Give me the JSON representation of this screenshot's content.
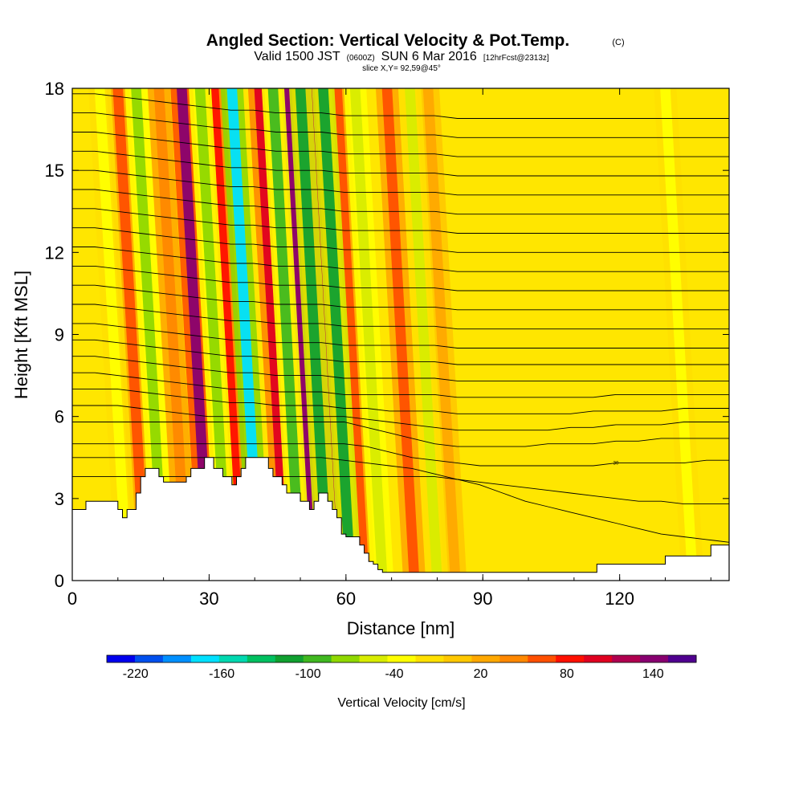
{
  "chart_data": {
    "type": "heatmap",
    "title": "Angled Section: Vertical Velocity & Pot.Temp.",
    "title_mark": "(C)",
    "subtitle": {
      "valid": "Valid 1500 JST",
      "zulu": "(0600Z)",
      "date": "SUN 6 Mar 2016",
      "forecast": "[12hrFcst@2313z]"
    },
    "slice_label": "slice X,Y= 92,59@45°",
    "xlabel": "Distance [nm]",
    "ylabel": "Height [Kft MSL]",
    "xlim": [
      0,
      144
    ],
    "ylim": [
      0,
      18
    ],
    "x_ticks": [
      0,
      30,
      60,
      90,
      120
    ],
    "y_ticks": [
      0,
      3,
      6,
      9,
      12,
      15,
      18
    ],
    "x_tick_labels": [
      "0",
      "30",
      "60",
      "90",
      "120"
    ],
    "y_tick_labels": [
      "0",
      "3",
      "6",
      "9",
      "12",
      "15",
      "18"
    ],
    "colorbar": {
      "label": "Vertical Velocity [cm/s]",
      "tick_labels": [
        "-220",
        "-160",
        "-100",
        "-40",
        "20",
        "80",
        "140"
      ],
      "min": -240,
      "max": 170,
      "colors": [
        "#0000ee",
        "#0050ee",
        "#0090ff",
        "#00e0ff",
        "#00d8b0",
        "#00c060",
        "#10a030",
        "#40b820",
        "#90d800",
        "#d8ec00",
        "#ffff00",
        "#ffe000",
        "#ffc800",
        "#ffa800",
        "#ff8800",
        "#ff5000",
        "#ff1000",
        "#e00020",
        "#b00050",
        "#880070",
        "#500090"
      ]
    },
    "terrain": {
      "x": [
        0,
        3,
        8,
        10,
        11,
        12,
        14,
        15,
        16,
        19,
        20,
        24,
        25,
        26,
        28,
        29,
        30,
        31,
        33,
        34,
        35,
        36,
        37,
        38,
        39,
        40,
        41,
        42,
        43,
        44,
        45,
        46,
        47,
        48,
        49,
        50,
        51,
        52,
        53,
        54,
        55,
        56,
        57,
        58,
        59,
        60,
        61,
        62,
        63,
        64,
        65,
        66,
        67,
        68,
        69,
        70,
        75,
        80,
        85,
        90,
        95,
        100,
        105,
        108,
        110,
        115,
        120,
        125,
        130,
        135,
        140,
        144
      ],
      "height": [
        2.6,
        2.9,
        2.9,
        2.6,
        2.3,
        2.6,
        3.2,
        3.8,
        4.1,
        3.8,
        3.6,
        3.6,
        3.8,
        4.1,
        4.1,
        4.5,
        4.5,
        4.1,
        3.8,
        3.8,
        3.5,
        3.8,
        4.1,
        4.5,
        4.5,
        4.5,
        4.5,
        4.5,
        4.1,
        3.8,
        3.8,
        3.5,
        3.2,
        3.2,
        3.2,
        2.9,
        2.9,
        2.6,
        2.9,
        3.2,
        3.2,
        2.9,
        2.6,
        2.3,
        1.7,
        1.6,
        1.6,
        1.6,
        1.3,
        1.0,
        0.7,
        0.6,
        0.4,
        0.3,
        0.3,
        0.3,
        0.3,
        0.3,
        0.3,
        0.3,
        0.3,
        0.3,
        0.3,
        0.3,
        0.3,
        0.6,
        0.6,
        0.6,
        0.9,
        0.9,
        1.3,
        1.3
      ]
    },
    "isentropes": [
      {
        "label": "",
        "height": [
          3.8,
          3.8,
          3.8,
          3.8,
          3.8,
          3.8,
          3.8,
          3.8,
          3.8,
          3.8,
          3.8,
          3.8,
          3.8,
          3.8,
          3.8,
          3.8,
          3.8,
          3.7,
          3.5,
          3.2,
          2.9,
          2.7,
          2.5,
          2.3,
          2.1,
          1.9,
          1.7,
          1.6,
          1.5,
          1.4
        ]
      },
      {
        "label": "",
        "height": [
          4.5,
          4.5,
          4.5,
          4.5,
          4.5,
          4.5,
          4.5,
          4.5,
          4.5,
          4.5,
          4.5,
          4.5,
          4.4,
          4.3,
          4.2,
          4.1,
          3.9,
          3.7,
          3.6,
          3.5,
          3.4,
          3.3,
          3.2,
          3.1,
          3.0,
          2.9,
          2.9,
          2.8,
          2.8,
          2.8
        ]
      },
      {
        "label": "30",
        "height": [
          5.0,
          5.0,
          5.0,
          5.0,
          5.0,
          5.0,
          5.0,
          5.0,
          5.0,
          5.0,
          5.0,
          5.0,
          5.0,
          4.9,
          4.7,
          4.5,
          4.4,
          4.3,
          4.2,
          4.2,
          4.2,
          4.2,
          4.2,
          4.2,
          4.3,
          4.3,
          4.3,
          4.3,
          4.4,
          4.4
        ]
      },
      {
        "label": "",
        "height": [
          5.8,
          5.8,
          5.8,
          5.8,
          5.8,
          5.8,
          5.8,
          5.8,
          5.8,
          5.8,
          5.8,
          5.8,
          5.8,
          5.6,
          5.4,
          5.2,
          5.0,
          4.9,
          4.9,
          4.9,
          4.9,
          5.0,
          5.0,
          5.0,
          5.1,
          5.1,
          5.2,
          5.2,
          5.2,
          5.2
        ]
      },
      {
        "label": "",
        "height": [
          6.4,
          6.4,
          6.4,
          6.3,
          6.2,
          6.1,
          6.0,
          6.0,
          6.0,
          6.0,
          6.0,
          6.0,
          6.0,
          5.9,
          5.8,
          5.7,
          5.6,
          5.5,
          5.5,
          5.5,
          5.5,
          5.5,
          5.6,
          5.6,
          5.7,
          5.7,
          5.7,
          5.8,
          5.8,
          5.8
        ]
      },
      {
        "label": "",
        "height": [
          7.0,
          7.0,
          7.0,
          6.9,
          6.8,
          6.7,
          6.6,
          6.5,
          6.5,
          6.4,
          6.4,
          6.4,
          6.3,
          6.3,
          6.2,
          6.2,
          6.2,
          6.1,
          6.1,
          6.1,
          6.1,
          6.1,
          6.1,
          6.2,
          6.2,
          6.2,
          6.2,
          6.3,
          6.3,
          6.3
        ]
      },
      {
        "label": "",
        "height": [
          7.6,
          7.6,
          7.5,
          7.4,
          7.3,
          7.2,
          7.1,
          7.0,
          7.0,
          6.9,
          6.9,
          6.9,
          6.8,
          6.8,
          6.8,
          6.8,
          6.8,
          6.7,
          6.7,
          6.7,
          6.7,
          6.7,
          6.7,
          6.7,
          6.8,
          6.8,
          6.8,
          6.8,
          6.8,
          6.8
        ]
      },
      {
        "label": "",
        "height": [
          8.2,
          8.2,
          8.1,
          8.0,
          7.9,
          7.8,
          7.7,
          7.6,
          7.6,
          7.5,
          7.5,
          7.5,
          7.4,
          7.4,
          7.4,
          7.4,
          7.4,
          7.3,
          7.3,
          7.3,
          7.3,
          7.3,
          7.3,
          7.3,
          7.3,
          7.3,
          7.3,
          7.3,
          7.3,
          7.3
        ]
      },
      {
        "label": "",
        "height": [
          8.8,
          8.8,
          8.7,
          8.6,
          8.5,
          8.4,
          8.3,
          8.2,
          8.2,
          8.1,
          8.1,
          8.1,
          8.0,
          8.0,
          8.0,
          8.0,
          8.0,
          7.9,
          7.9,
          7.9,
          7.9,
          7.9,
          7.9,
          7.9,
          7.9,
          7.9,
          7.9,
          7.9,
          7.9,
          7.9
        ]
      },
      {
        "label": "",
        "height": [
          9.4,
          9.4,
          9.3,
          9.2,
          9.1,
          9.0,
          8.9,
          8.8,
          8.8,
          8.7,
          8.7,
          8.7,
          8.6,
          8.6,
          8.6,
          8.6,
          8.6,
          8.5,
          8.5,
          8.5,
          8.5,
          8.5,
          8.5,
          8.5,
          8.5,
          8.5,
          8.5,
          8.5,
          8.5,
          8.5
        ]
      },
      {
        "label": "",
        "height": [
          10.1,
          10.1,
          10.0,
          9.9,
          9.8,
          9.7,
          9.6,
          9.5,
          9.5,
          9.4,
          9.4,
          9.4,
          9.3,
          9.3,
          9.3,
          9.3,
          9.3,
          9.2,
          9.2,
          9.2,
          9.2,
          9.2,
          9.2,
          9.2,
          9.2,
          9.2,
          9.2,
          9.2,
          9.2,
          9.2
        ]
      },
      {
        "label": "",
        "height": [
          10.8,
          10.8,
          10.7,
          10.6,
          10.5,
          10.4,
          10.3,
          10.2,
          10.2,
          10.1,
          10.1,
          10.1,
          10.0,
          10.0,
          10.0,
          10.0,
          10.0,
          9.9,
          9.9,
          9.9,
          9.9,
          9.9,
          9.9,
          9.9,
          9.9,
          9.9,
          9.9,
          9.9,
          9.9,
          9.9
        ]
      },
      {
        "label": "",
        "height": [
          11.5,
          11.5,
          11.4,
          11.3,
          11.2,
          11.1,
          11.0,
          10.9,
          10.9,
          10.8,
          10.8,
          10.8,
          10.7,
          10.7,
          10.7,
          10.7,
          10.7,
          10.6,
          10.6,
          10.6,
          10.6,
          10.6,
          10.6,
          10.6,
          10.6,
          10.6,
          10.6,
          10.6,
          10.6,
          10.6
        ]
      },
      {
        "label": "",
        "height": [
          12.2,
          12.2,
          12.1,
          12.0,
          11.9,
          11.8,
          11.7,
          11.6,
          11.6,
          11.5,
          11.5,
          11.5,
          11.4,
          11.4,
          11.4,
          11.4,
          11.4,
          11.3,
          11.3,
          11.3,
          11.3,
          11.3,
          11.3,
          11.3,
          11.3,
          11.3,
          11.3,
          11.3,
          11.3,
          11.3
        ]
      },
      {
        "label": "",
        "height": [
          12.9,
          12.9,
          12.8,
          12.7,
          12.6,
          12.5,
          12.4,
          12.3,
          12.3,
          12.2,
          12.2,
          12.2,
          12.1,
          12.1,
          12.1,
          12.1,
          12.1,
          12.0,
          12.0,
          12.0,
          12.0,
          12.0,
          12.0,
          12.0,
          12.0,
          12.0,
          12.0,
          12.0,
          12.0,
          12.0
        ]
      },
      {
        "label": "",
        "height": [
          13.6,
          13.6,
          13.5,
          13.4,
          13.3,
          13.2,
          13.1,
          13.0,
          13.0,
          12.9,
          12.9,
          12.9,
          12.8,
          12.8,
          12.8,
          12.8,
          12.8,
          12.7,
          12.7,
          12.7,
          12.7,
          12.7,
          12.7,
          12.7,
          12.7,
          12.7,
          12.7,
          12.7,
          12.7,
          12.7
        ]
      },
      {
        "label": "",
        "height": [
          14.3,
          14.3,
          14.2,
          14.1,
          14.0,
          13.9,
          13.8,
          13.7,
          13.7,
          13.6,
          13.6,
          13.6,
          13.5,
          13.5,
          13.5,
          13.5,
          13.5,
          13.4,
          13.4,
          13.4,
          13.4,
          13.4,
          13.4,
          13.4,
          13.4,
          13.4,
          13.4,
          13.4,
          13.4,
          13.4
        ]
      },
      {
        "label": "",
        "height": [
          15.0,
          15.0,
          14.9,
          14.8,
          14.7,
          14.6,
          14.5,
          14.4,
          14.4,
          14.3,
          14.3,
          14.3,
          14.2,
          14.2,
          14.2,
          14.2,
          14.2,
          14.1,
          14.1,
          14.1,
          14.1,
          14.1,
          14.1,
          14.1,
          14.1,
          14.1,
          14.1,
          14.1,
          14.1,
          14.1
        ]
      },
      {
        "label": "",
        "height": [
          15.7,
          15.7,
          15.6,
          15.5,
          15.4,
          15.3,
          15.2,
          15.1,
          15.1,
          15.0,
          15.0,
          15.0,
          14.9,
          14.9,
          14.9,
          14.9,
          14.9,
          14.8,
          14.8,
          14.8,
          14.8,
          14.8,
          14.8,
          14.8,
          14.8,
          14.8,
          14.8,
          14.8,
          14.8,
          14.8
        ]
      },
      {
        "label": "",
        "height": [
          16.4,
          16.4,
          16.3,
          16.2,
          16.1,
          16.0,
          15.9,
          15.8,
          15.8,
          15.7,
          15.7,
          15.7,
          15.6,
          15.6,
          15.6,
          15.6,
          15.6,
          15.5,
          15.5,
          15.5,
          15.5,
          15.5,
          15.5,
          15.5,
          15.5,
          15.5,
          15.5,
          15.5,
          15.5,
          15.5
        ]
      },
      {
        "label": "",
        "height": [
          17.1,
          17.1,
          17.0,
          16.9,
          16.8,
          16.7,
          16.6,
          16.5,
          16.5,
          16.4,
          16.4,
          16.4,
          16.3,
          16.3,
          16.3,
          16.3,
          16.3,
          16.2,
          16.2,
          16.2,
          16.2,
          16.2,
          16.2,
          16.2,
          16.2,
          16.2,
          16.2,
          16.2,
          16.2,
          16.2
        ]
      },
      {
        "label": "",
        "height": [
          17.8,
          17.8,
          17.7,
          17.6,
          17.5,
          17.4,
          17.3,
          17.2,
          17.2,
          17.1,
          17.1,
          17.1,
          17.0,
          17.0,
          17.0,
          17.0,
          17.0,
          16.9,
          16.9,
          16.9,
          16.9,
          16.9,
          16.9,
          16.9,
          16.9,
          16.9,
          16.9,
          16.9,
          16.9,
          16.9
        ]
      }
    ],
    "updraft_bands": [
      {
        "x": 16,
        "value": 70
      },
      {
        "x": 25,
        "value": 40
      },
      {
        "x": 30,
        "value": 150
      },
      {
        "x": 37,
        "value": 90
      },
      {
        "x": 47,
        "value": 110
      },
      {
        "x": 53,
        "value": 150
      },
      {
        "x": 58,
        "value": 130
      },
      {
        "x": 64,
        "value": 60
      },
      {
        "x": 75,
        "value": 70
      },
      {
        "x": 84,
        "value": 30
      }
    ],
    "downdraft_bands": [
      {
        "x": 12,
        "value": -40
      },
      {
        "x": 20,
        "value": -70
      },
      {
        "x": 34,
        "value": -80
      },
      {
        "x": 41,
        "value": -170
      },
      {
        "x": 50,
        "value": -90
      },
      {
        "x": 56,
        "value": -110
      },
      {
        "x": 61,
        "value": -120
      },
      {
        "x": 68,
        "value": -60
      },
      {
        "x": 80,
        "value": -50
      },
      {
        "x": 136,
        "value": -30
      }
    ]
  }
}
